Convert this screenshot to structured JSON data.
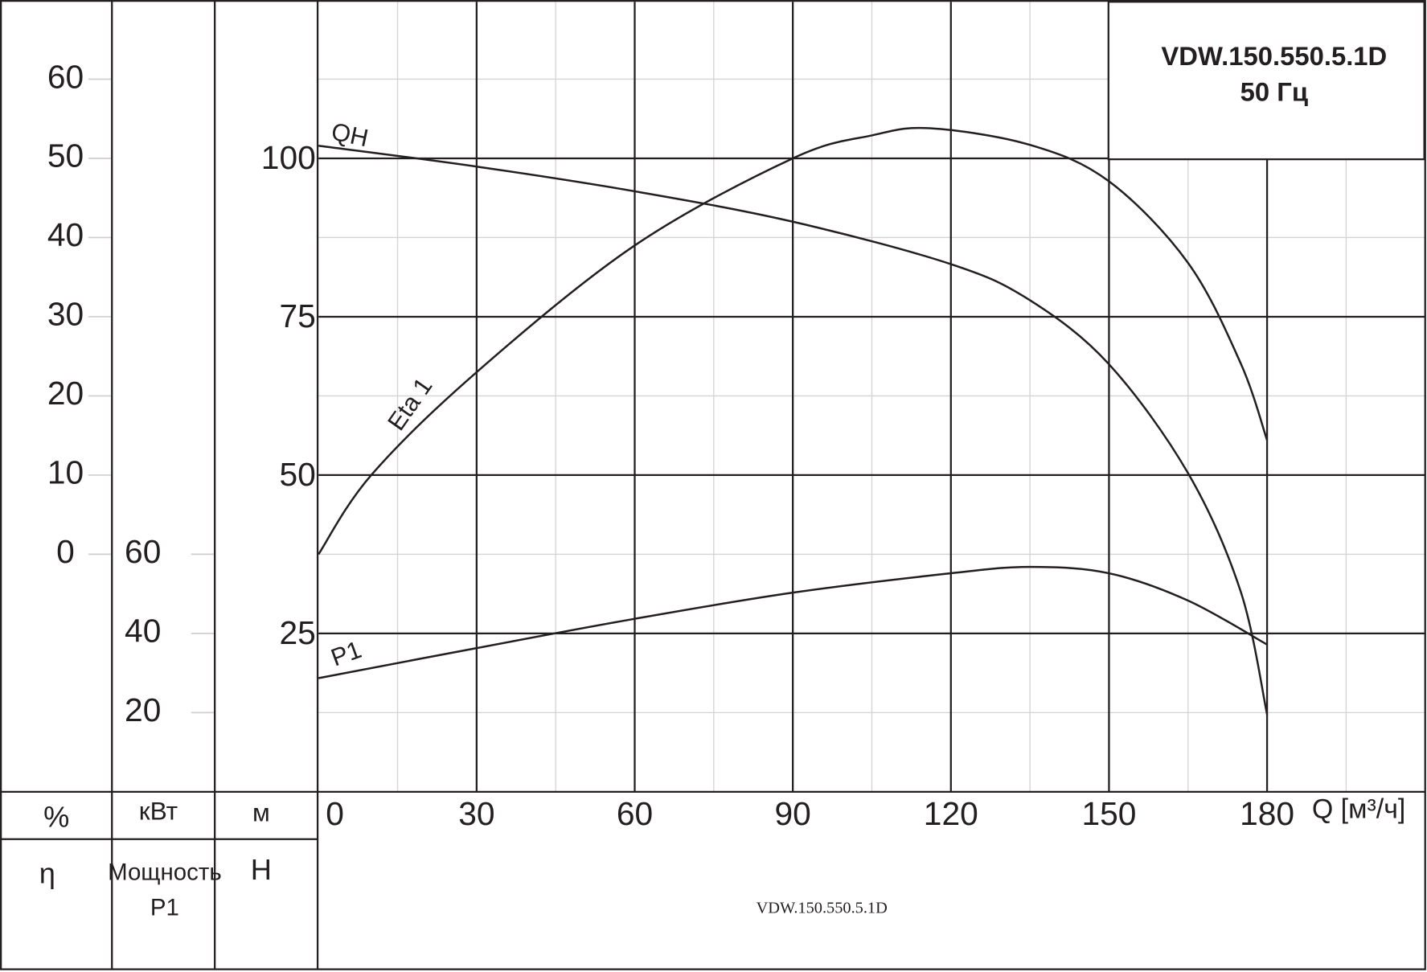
{
  "chart_data": {
    "type": "line",
    "title": "VDW.150.550.5.1D",
    "subtitle": "50 Гц",
    "footer": "VDW.150.550.5.1D",
    "xlabel": "Q [м³/ч]",
    "xlim": [
      0,
      210
    ],
    "xticks": [
      0,
      30,
      60,
      90,
      120,
      150,
      180
    ],
    "xminorticks": [
      15,
      45,
      75,
      105,
      135,
      165,
      195
    ],
    "ylim": [
      0,
      125
    ],
    "yticks": [
      25,
      50,
      75,
      100
    ],
    "yminorticks": [
      12.5,
      37.5,
      62.5,
      87.5,
      112.5
    ],
    "yunit": "м",
    "ylabel": "H",
    "y2lim": [
      -30,
      70
    ],
    "y2ticks": [
      0,
      10,
      20,
      30,
      40,
      50,
      60
    ],
    "y2unit": "%",
    "y2label": "η",
    "y3lim": [
      0,
      200
    ],
    "y3ticks": [
      20,
      40,
      60
    ],
    "y3unit": "кВт",
    "y3label": [
      "Мощность",
      "P1"
    ],
    "series": [
      {
        "name": "QH",
        "axis": "y",
        "color": "#231f20",
        "x": [
          0,
          30,
          60,
          90,
          120,
          135,
          150,
          165,
          175,
          180
        ],
        "values": [
          102,
          98.7,
          94.8,
          90,
          83.3,
          77.6,
          67.5,
          50.3,
          31.6,
          12.2
        ]
      },
      {
        "name": "Eta 1",
        "axis": "y2",
        "color": "#231f20",
        "x": [
          0,
          10,
          30,
          60,
          90,
          105,
          116,
          135,
          150,
          165,
          175,
          180
        ],
        "values": [
          0,
          10,
          23,
          39,
          50,
          52.9,
          53.8,
          51.7,
          47.1,
          36.8,
          24.1,
          14.4
        ]
      },
      {
        "name": "P1",
        "axis": "y3",
        "color": "#231f20",
        "x": [
          0,
          30,
          60,
          90,
          120,
          135,
          150,
          165,
          180
        ],
        "values": [
          28.7,
          36.3,
          43.7,
          50.3,
          55.2,
          56.8,
          55.2,
          48.3,
          37.2
        ]
      }
    ]
  }
}
